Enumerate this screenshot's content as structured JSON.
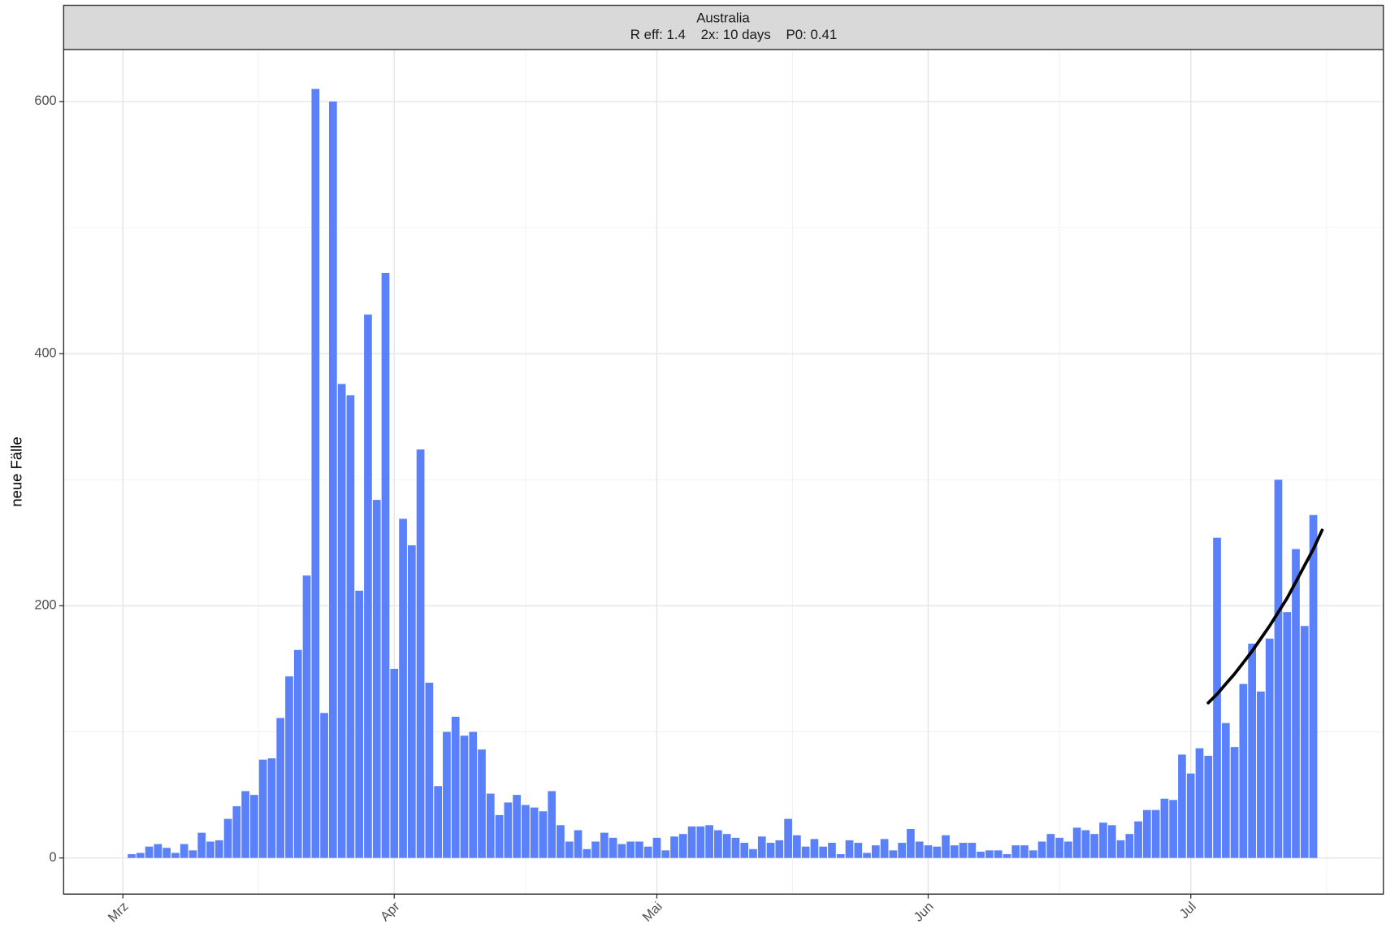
{
  "chart_data": {
    "type": "bar",
    "title": "Australia",
    "subtitle": "R eff: 1.4    2x: 10 days    P0: 0.41",
    "ylabel": "neue Fälle",
    "color": "#5a80fa",
    "x": [
      1,
      2,
      3,
      4,
      5,
      6,
      7,
      8,
      9,
      10,
      11,
      12,
      13,
      14,
      15,
      16,
      17,
      18,
      19,
      20,
      21,
      22,
      23,
      24,
      25,
      26,
      27,
      28,
      29,
      30,
      31,
      32,
      33,
      34,
      35,
      36,
      37,
      38,
      39,
      40,
      41,
      42,
      43,
      44,
      45,
      46,
      47,
      48,
      49,
      50,
      51,
      52,
      53,
      54,
      55,
      56,
      57,
      58,
      59,
      60,
      61,
      62,
      63,
      64,
      65,
      66,
      67,
      68,
      69,
      70,
      71,
      72,
      73,
      74,
      75,
      76,
      77,
      78,
      79,
      80,
      81,
      82,
      83,
      84,
      85,
      86,
      87,
      88,
      89,
      90,
      91,
      92,
      93,
      94,
      95,
      96,
      97,
      98,
      99,
      100,
      101,
      102,
      103,
      104,
      105,
      106,
      107,
      108,
      109,
      110,
      111,
      112,
      113,
      114,
      115,
      116,
      117,
      118,
      119,
      120,
      121,
      122,
      123,
      124,
      125,
      126,
      127,
      128,
      129,
      130,
      131,
      132,
      133,
      134,
      135,
      136
    ],
    "values": [
      3,
      4,
      9,
      11,
      8,
      4,
      11,
      6,
      20,
      13,
      14,
      31,
      41,
      53,
      50,
      78,
      79,
      111,
      144,
      165,
      224,
      610,
      115,
      600,
      376,
      367,
      212,
      431,
      284,
      464,
      150,
      269,
      248,
      324,
      139,
      57,
      100,
      112,
      97,
      100,
      86,
      51,
      34,
      44,
      50,
      42,
      40,
      37,
      53,
      26,
      13,
      22,
      7,
      13,
      20,
      16,
      11,
      13,
      13,
      9,
      16,
      6,
      17,
      19,
      25,
      25,
      26,
      22,
      19,
      16,
      12,
      7,
      17,
      12,
      14,
      31,
      18,
      9,
      15,
      9,
      12,
      3,
      14,
      12,
      4,
      10,
      15,
      6,
      12,
      23,
      13,
      10,
      9,
      18,
      10,
      12,
      12,
      5,
      6,
      6,
      3,
      10,
      10,
      6,
      13,
      19,
      16,
      13,
      24,
      22,
      19,
      28,
      26,
      14,
      19,
      29,
      38,
      38,
      47,
      46,
      82,
      67,
      87,
      81,
      254,
      107,
      88,
      138,
      170,
      132,
      174,
      300,
      195,
      245,
      184,
      272
    ],
    "fit": {
      "color": "#000000",
      "x": [
        124,
        125,
        126,
        127,
        128,
        129,
        130,
        131,
        132,
        133,
        134,
        135,
        136,
        137
      ],
      "values": [
        123,
        130,
        138,
        146,
        155,
        164,
        174,
        184,
        195,
        206,
        219,
        232,
        245,
        260
      ]
    },
    "xlim": [
      -6.77,
      144.0
    ],
    "xticks": [
      {
        "value": 0,
        "label": "Mrz"
      },
      {
        "value": 31,
        "label": "Apr"
      },
      {
        "value": 61,
        "label": "Mai"
      },
      {
        "value": 92,
        "label": "Jun"
      },
      {
        "value": 122,
        "label": "Jul"
      }
    ],
    "xminor": [
      15.5,
      46,
      76.5,
      107,
      137.5
    ],
    "ylim": [
      -28.7,
      641.3
    ],
    "yticks": [
      0,
      200,
      400,
      600
    ],
    "yminor": [
      100,
      300,
      500
    ],
    "grid": true
  }
}
